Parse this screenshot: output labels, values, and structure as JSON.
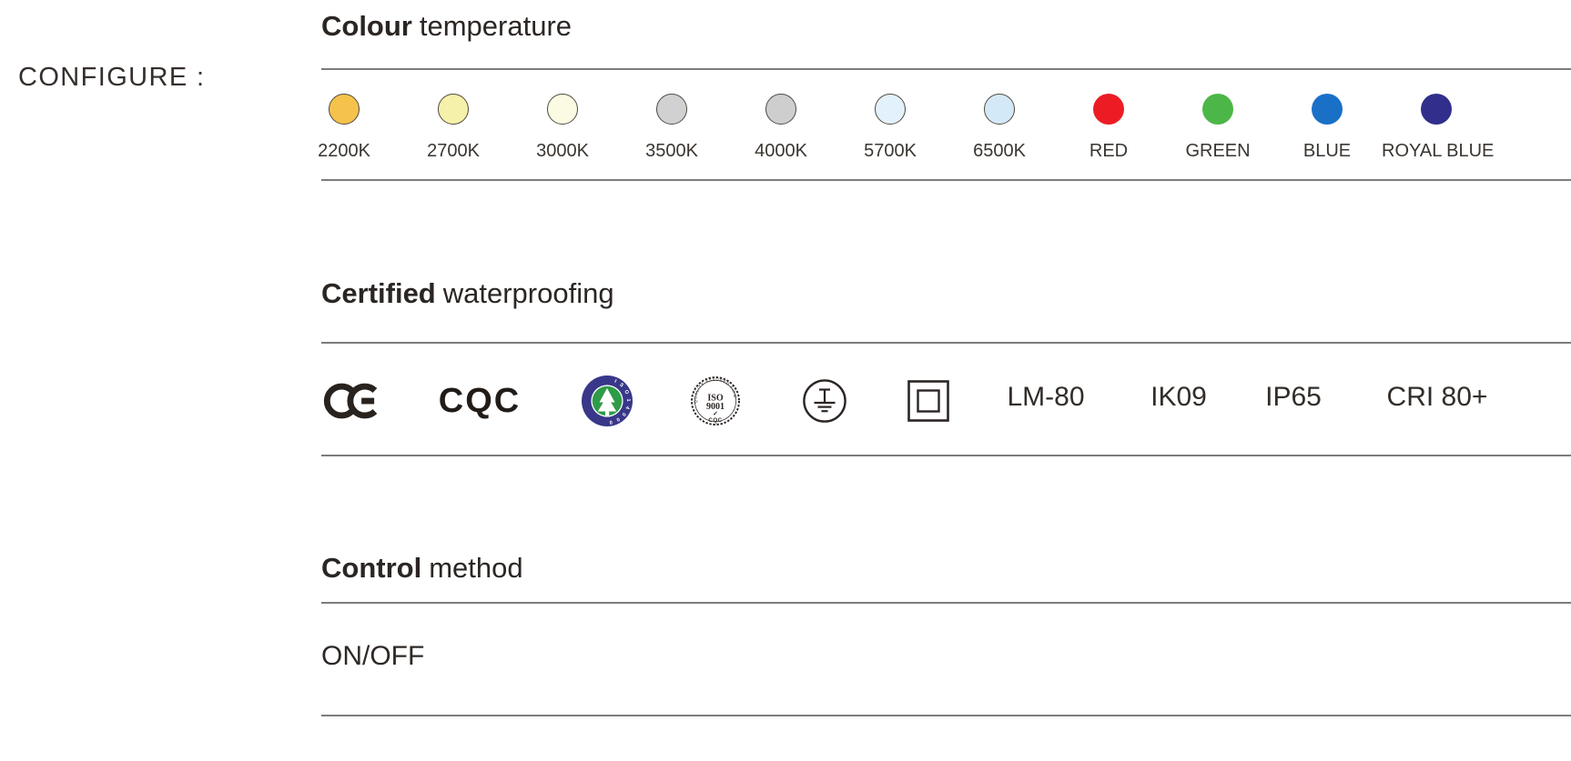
{
  "configure_label": "CONFIGURE :",
  "sections": {
    "colour_temperature": {
      "title_bold": "Colour",
      "title_rest": "temperature",
      "outline_color": "#4f4a40",
      "swatches": [
        {
          "label": "2200K",
          "color": "#F5C34C",
          "outlined": true
        },
        {
          "label": "2700K",
          "color": "#F6F1AA",
          "outlined": true
        },
        {
          "label": "3000K",
          "color": "#FBFAE2",
          "outlined": true
        },
        {
          "label": "3500K",
          "color": "#D1D1D2",
          "outlined": true
        },
        {
          "label": "4000K",
          "color": "#CECECF",
          "outlined": true
        },
        {
          "label": "5700K",
          "color": "#E2F1FB",
          "outlined": true
        },
        {
          "label": "6500K",
          "color": "#D4E9F8",
          "outlined": true
        },
        {
          "label": "RED",
          "color": "#EC1C24",
          "outlined": false
        },
        {
          "label": "GREEN",
          "color": "#4CB748",
          "outlined": false
        },
        {
          "label": "BLUE",
          "color": "#1A70C7",
          "outlined": false
        },
        {
          "label": "ROYAL BLUE",
          "color": "#312F8B",
          "outlined": false
        }
      ]
    },
    "certified_waterproofing": {
      "title_bold": "Certified",
      "title_rest": "waterproofing",
      "icons": [
        "ce-mark-icon",
        "cqc-logo",
        "iso14000-badge-icon",
        "iso9001-badge-icon",
        "protective-earth-icon",
        "class-ii-insulation-icon"
      ],
      "cqc": {
        "text": "CQC"
      },
      "iso14000": {
        "ring_text": "I S O 1 4 0 0 0",
        "ring_color": "#383789",
        "center_color": "#2E9B48"
      },
      "iso9001": {
        "arc_text": "QUALITY ASSURED FIRM",
        "line1": "ISO",
        "line2": "9001",
        "check": "✓",
        "bottom": "CQC"
      },
      "ratings": [
        "LM-80",
        "IK09",
        "IP65",
        "CRI 80+"
      ]
    },
    "control_method": {
      "title_bold": "Control",
      "title_rest": "method",
      "option": "ON/OFF"
    }
  }
}
